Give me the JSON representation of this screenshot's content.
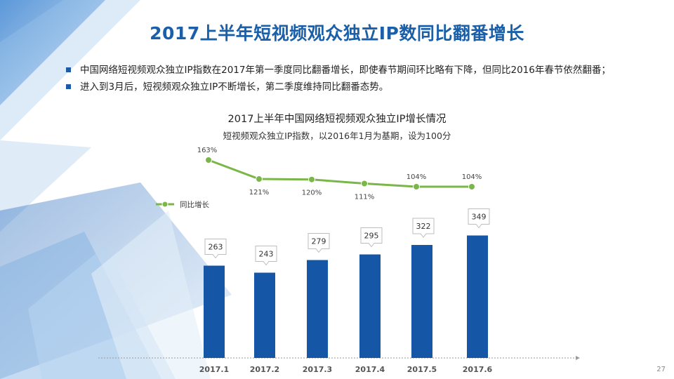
{
  "slide": {
    "title": "2017上半年短视频观众独立IP数同比翻番增长",
    "bullets": [
      "中国网络短视频观众独立IP指数在2017年第一季度同比翻番增长，即使春节期间环比略有下降，但同比2016年春节依然翻番；",
      "进入到3月后，短视频观众独立IP不断增长，第二季度维持同比翻番态势。"
    ],
    "page_number": "27"
  },
  "colors": {
    "bar": "#1556a6",
    "line": "#7ab648",
    "title": "#1a5fa8",
    "bullet": "#1f5aa6"
  },
  "chart_data": {
    "type": "bar",
    "title": "2017上半年中国网络短视频观众独立IP增长情况",
    "subtitle": "短视频观众独立IP指数，以2016年1月为基期，设为100分",
    "categories": [
      "2017.1",
      "2017.2",
      "2017.3",
      "2017.4",
      "2017.5",
      "2017.6"
    ],
    "values": [
      263,
      243,
      279,
      295,
      322,
      349
    ],
    "value_labels": [
      "263",
      "243",
      "279",
      "295",
      "322",
      "349"
    ],
    "line_series": {
      "name": "同比增长",
      "values": [
        163,
        121,
        120,
        111,
        104,
        104
      ],
      "labels": [
        "163%",
        "121%",
        "120%",
        "111%",
        "104%",
        "104%"
      ]
    },
    "legend_position": "left",
    "grid": false
  }
}
